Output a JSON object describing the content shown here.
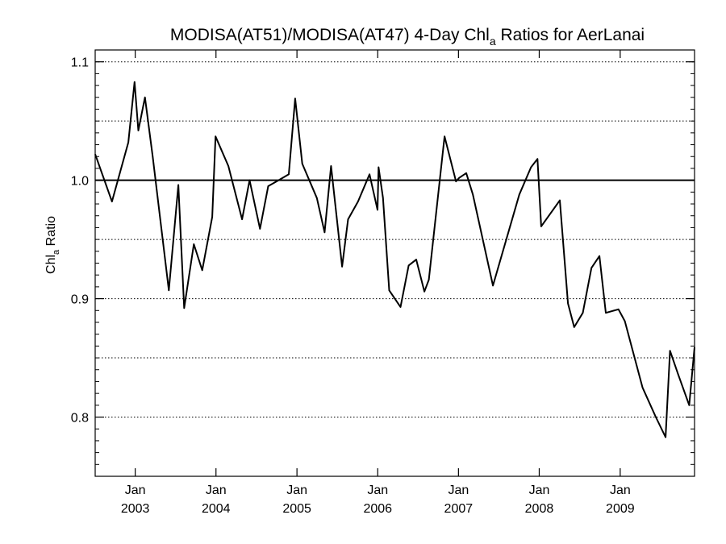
{
  "chart_data": {
    "type": "line",
    "title": {
      "main": "MODISA(AT51)/MODISA(AT47) 4-Day Chl",
      "subscript": "a",
      "suffix": " Ratios for AerLanai"
    },
    "ylabel": {
      "main": "Chl",
      "subscript": "a",
      "suffix": " Ratio"
    },
    "xlim": [
      "2002-07-04",
      "2009-12-03"
    ],
    "ylim": [
      0.75,
      1.11
    ],
    "y_ticks": [
      0.8,
      0.9,
      1.0,
      1.1
    ],
    "y_tick_labels": [
      "0.8",
      "0.9",
      "1.0",
      "1.1"
    ],
    "y_minor_step": 0.01,
    "dotted_gridlines": [
      0.8,
      0.85,
      0.9,
      0.95,
      1.05,
      1.1
    ],
    "reference_line": 1.0,
    "x_ticks": [
      {
        "date": "2003-01-01",
        "month": "Jan",
        "year": "2003"
      },
      {
        "date": "2004-01-01",
        "month": "Jan",
        "year": "2004"
      },
      {
        "date": "2005-01-01",
        "month": "Jan",
        "year": "2005"
      },
      {
        "date": "2006-01-01",
        "month": "Jan",
        "year": "2006"
      },
      {
        "date": "2007-01-01",
        "month": "Jan",
        "year": "2007"
      },
      {
        "date": "2008-01-01",
        "month": "Jan",
        "year": "2008"
      },
      {
        "date": "2009-01-01",
        "month": "Jan",
        "year": "2009"
      }
    ],
    "series": [
      {
        "color": "#000000",
        "x": [
          "2002-07-04",
          "2002-09-18",
          "2002-12-01",
          "2002-12-29",
          "2003-01-15",
          "2003-02-14",
          "2003-03-21",
          "2003-06-02",
          "2003-07-15",
          "2003-08-10",
          "2003-09-23",
          "2003-10-31",
          "2003-12-15",
          "2003-12-30",
          "2004-02-26",
          "2004-04-28",
          "2004-06-01",
          "2004-07-18",
          "2004-08-24",
          "2004-10-10",
          "2004-11-25",
          "2004-12-24",
          "2005-01-25",
          "2005-04-01",
          "2005-05-06",
          "2005-06-04",
          "2005-07-24",
          "2005-08-20",
          "2005-10-04",
          "2005-11-25",
          "2005-12-31",
          "2006-01-05",
          "2006-01-25",
          "2006-02-22",
          "2006-04-14",
          "2006-05-21",
          "2006-06-24",
          "2006-07-31",
          "2006-08-20",
          "2006-10-30",
          "2006-12-21",
          "2007-01-04",
          "2007-02-05",
          "2007-03-07",
          "2007-06-06",
          "2007-10-03",
          "2007-11-25",
          "2007-12-24",
          "2008-01-10",
          "2008-04-03",
          "2008-05-10",
          "2008-06-07",
          "2008-07-16",
          "2008-08-24",
          "2008-09-29",
          "2008-10-28",
          "2008-12-24",
          "2009-01-22",
          "2009-04-12",
          "2009-06-11",
          "2009-07-25",
          "2009-08-14",
          "2009-09-20",
          "2009-11-09",
          "2009-12-03"
        ],
        "y": [
          1.022,
          0.982,
          1.032,
          1.083,
          1.042,
          1.07,
          1.02,
          0.907,
          0.996,
          0.892,
          0.946,
          0.924,
          0.969,
          1.037,
          1.012,
          0.967,
          1.0,
          0.959,
          0.995,
          1.0,
          1.005,
          1.069,
          1.014,
          0.985,
          0.956,
          1.012,
          0.927,
          0.967,
          0.982,
          1.005,
          0.975,
          1.011,
          0.985,
          0.907,
          0.893,
          0.928,
          0.933,
          0.906,
          0.916,
          1.037,
          0.999,
          1.002,
          1.006,
          0.988,
          0.911,
          0.988,
          1.011,
          1.018,
          0.961,
          0.983,
          0.896,
          0.876,
          0.888,
          0.926,
          0.936,
          0.888,
          0.891,
          0.881,
          0.825,
          0.8,
          0.783,
          0.856,
          0.836,
          0.81,
          0.859
        ]
      }
    ]
  }
}
